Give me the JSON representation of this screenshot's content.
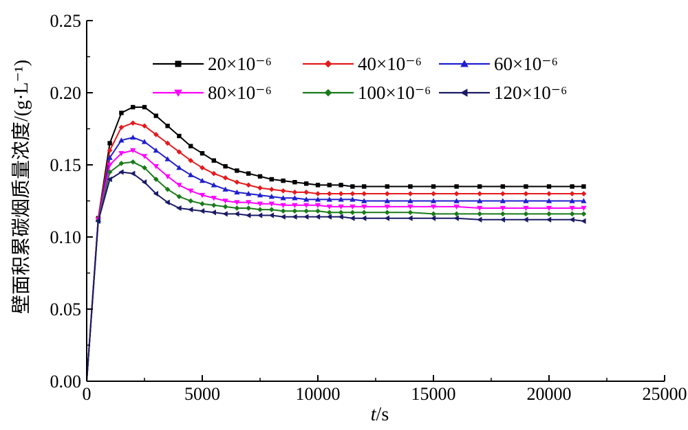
{
  "chart_data": {
    "type": "line",
    "xlabel": "t/s",
    "ylabel": "壁面积累碳烟质量浓度/(g·L⁻¹)",
    "xlim": [
      0,
      25000
    ],
    "ylim": [
      0,
      0.25
    ],
    "x_ticks": [
      "0",
      "5000",
      "10000",
      "15000",
      "20000",
      "25000"
    ],
    "y_ticks": [
      "0.00",
      "0.05",
      "0.10",
      "0.15",
      "0.20",
      "0.25"
    ],
    "grid": false,
    "legend_position": "top-center",
    "series": [
      {
        "name": "20×10⁻⁶",
        "color": "#000000",
        "marker": "square",
        "x": [
          0,
          500,
          1000,
          1500,
          2000,
          2500,
          3000,
          3500,
          4000,
          4500,
          5000,
          5500,
          6000,
          6500,
          7000,
          7500,
          8000,
          8500,
          9000,
          9500,
          10000,
          10500,
          11000,
          11500,
          12000,
          13000,
          14000,
          15000,
          16000,
          17000,
          18000,
          19000,
          20000,
          21000,
          21500
        ],
        "y": [
          0.0,
          0.113,
          0.165,
          0.186,
          0.19,
          0.19,
          0.184,
          0.177,
          0.17,
          0.163,
          0.158,
          0.153,
          0.149,
          0.146,
          0.144,
          0.142,
          0.14,
          0.139,
          0.138,
          0.137,
          0.136,
          0.136,
          0.136,
          0.135,
          0.135,
          0.135,
          0.135,
          0.135,
          0.135,
          0.135,
          0.135,
          0.135,
          0.135,
          0.135,
          0.135
        ]
      },
      {
        "name": "40×10⁻⁶",
        "color": "#e41a1c",
        "marker": "diamond",
        "x": [
          0,
          500,
          1000,
          1500,
          2000,
          2500,
          3000,
          3500,
          4000,
          4500,
          5000,
          5500,
          6000,
          6500,
          7000,
          7500,
          8000,
          8500,
          9000,
          9500,
          10000,
          10500,
          11000,
          11500,
          12000,
          13000,
          14000,
          15000,
          16000,
          17000,
          18000,
          19000,
          20000,
          21000,
          21500
        ],
        "y": [
          0.0,
          0.113,
          0.16,
          0.176,
          0.179,
          0.177,
          0.171,
          0.165,
          0.159,
          0.153,
          0.148,
          0.144,
          0.141,
          0.138,
          0.136,
          0.134,
          0.133,
          0.132,
          0.131,
          0.131,
          0.13,
          0.13,
          0.13,
          0.13,
          0.13,
          0.13,
          0.13,
          0.13,
          0.13,
          0.13,
          0.13,
          0.13,
          0.13,
          0.13,
          0.13
        ]
      },
      {
        "name": "60×10⁻⁶",
        "color": "#1f1fcc",
        "marker": "triangle-up",
        "x": [
          0,
          500,
          1000,
          1500,
          2000,
          2500,
          3000,
          3500,
          4000,
          4500,
          5000,
          5500,
          6000,
          6500,
          7000,
          7500,
          8000,
          8500,
          9000,
          9500,
          10000,
          10500,
          11000,
          11500,
          12000,
          13000,
          14000,
          15000,
          16000,
          17000,
          18000,
          19000,
          20000,
          21000,
          21500
        ],
        "y": [
          0.0,
          0.112,
          0.155,
          0.167,
          0.169,
          0.166,
          0.16,
          0.154,
          0.148,
          0.143,
          0.139,
          0.136,
          0.133,
          0.131,
          0.13,
          0.129,
          0.128,
          0.127,
          0.127,
          0.126,
          0.126,
          0.126,
          0.126,
          0.126,
          0.125,
          0.125,
          0.125,
          0.125,
          0.125,
          0.125,
          0.125,
          0.125,
          0.125,
          0.125,
          0.125
        ]
      },
      {
        "name": "80×10⁻⁶",
        "color": "#ff00ff",
        "marker": "triangle-down",
        "x": [
          0,
          500,
          1000,
          1500,
          2000,
          2500,
          3000,
          3500,
          4000,
          4500,
          5000,
          5500,
          6000,
          6500,
          7000,
          7500,
          8000,
          8500,
          9000,
          9500,
          10000,
          10500,
          11000,
          11500,
          12000,
          13000,
          14000,
          15000,
          16000,
          17000,
          18000,
          19000,
          20000,
          21000,
          21500
        ],
        "y": [
          0.0,
          0.112,
          0.15,
          0.158,
          0.16,
          0.156,
          0.149,
          0.142,
          0.136,
          0.132,
          0.129,
          0.127,
          0.125,
          0.124,
          0.124,
          0.123,
          0.123,
          0.122,
          0.122,
          0.122,
          0.122,
          0.121,
          0.121,
          0.121,
          0.121,
          0.121,
          0.121,
          0.121,
          0.121,
          0.12,
          0.12,
          0.12,
          0.12,
          0.12,
          0.12
        ]
      },
      {
        "name": "100×10⁻⁶",
        "color": "#1a7a1a",
        "marker": "diamond",
        "x": [
          0,
          500,
          1000,
          1500,
          2000,
          2500,
          3000,
          3500,
          4000,
          4500,
          5000,
          5500,
          6000,
          6500,
          7000,
          7500,
          8000,
          8500,
          9000,
          9500,
          10000,
          10500,
          11000,
          11500,
          12000,
          13000,
          14000,
          15000,
          16000,
          17000,
          18000,
          19000,
          20000,
          21000,
          21500
        ],
        "y": [
          0.0,
          0.111,
          0.145,
          0.151,
          0.152,
          0.148,
          0.14,
          0.133,
          0.128,
          0.125,
          0.123,
          0.122,
          0.121,
          0.12,
          0.12,
          0.119,
          0.119,
          0.118,
          0.118,
          0.118,
          0.118,
          0.117,
          0.117,
          0.117,
          0.117,
          0.117,
          0.117,
          0.116,
          0.116,
          0.116,
          0.116,
          0.116,
          0.116,
          0.116,
          0.116
        ]
      },
      {
        "name": "120×10⁻⁶",
        "color": "#1a1a66",
        "marker": "triangle-left",
        "x": [
          0,
          500,
          1000,
          1500,
          2000,
          2500,
          3000,
          3500,
          4000,
          4500,
          5000,
          5500,
          6000,
          6500,
          7000,
          7500,
          8000,
          8500,
          9000,
          9500,
          10000,
          10500,
          11000,
          11500,
          12000,
          13000,
          14000,
          15000,
          16000,
          17000,
          18000,
          19000,
          20000,
          21000,
          21500
        ],
        "y": [
          0.0,
          0.111,
          0.14,
          0.145,
          0.144,
          0.138,
          0.13,
          0.124,
          0.12,
          0.119,
          0.118,
          0.117,
          0.116,
          0.116,
          0.115,
          0.115,
          0.115,
          0.114,
          0.114,
          0.114,
          0.114,
          0.114,
          0.114,
          0.113,
          0.113,
          0.113,
          0.113,
          0.113,
          0.113,
          0.112,
          0.112,
          0.112,
          0.112,
          0.112,
          0.111
        ]
      }
    ]
  }
}
